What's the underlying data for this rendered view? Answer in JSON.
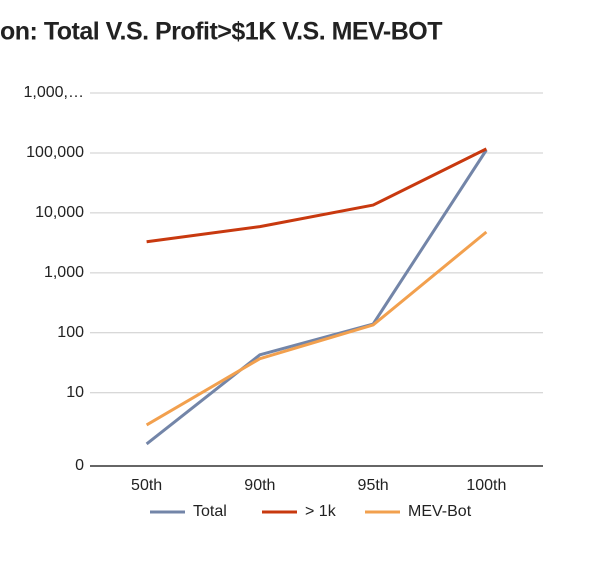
{
  "chart_data": {
    "type": "line",
    "title": "on:  Total V.S. Profit>$1K V.S. MEV-BOT",
    "categories": [
      "50th",
      "90th",
      "95th",
      "100th"
    ],
    "series": [
      {
        "name": "Total",
        "color": "#7385a8",
        "values": [
          1.4,
          43,
          140,
          112000
        ]
      },
      {
        "name": "> 1k",
        "color": "#c8390f",
        "values": [
          3300,
          5900,
          13500,
          117000
        ]
      },
      {
        "name": "MEV-Bot",
        "color": "#f2a04e",
        "values": [
          2.9,
          37,
          135,
          4800
        ]
      }
    ],
    "ylim": [
      0.6,
      1000000
    ],
    "log_scale": true,
    "yticks": [
      0,
      10,
      100,
      {
        "value": 1000,
        "label": "1,000"
      },
      {
        "value": 10000,
        "label": "10,000"
      },
      {
        "value": 100000,
        "label": "100,000"
      },
      {
        "value": 1000000,
        "label": "1,000,…"
      }
    ],
    "grid": true,
    "legend": "bottom"
  }
}
